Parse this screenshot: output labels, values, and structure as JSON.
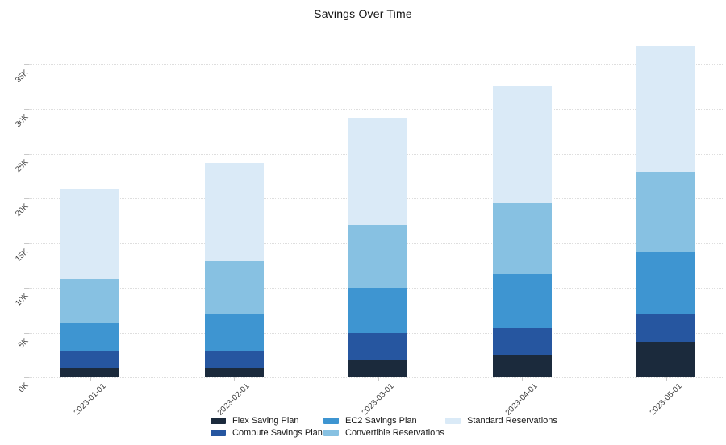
{
  "chart_data": {
    "type": "bar",
    "stacked": true,
    "title": "Savings Over Time",
    "categories": [
      "2023-01-01",
      "2023-02-01",
      "2023-03-01",
      "2023-04-01",
      "2023-05-01"
    ],
    "series": [
      {
        "name": "Flex Saving Plan",
        "color": "#1b2a3c",
        "values": [
          1000,
          1000,
          2000,
          2500,
          4000
        ]
      },
      {
        "name": "Compute Savings Plan",
        "color": "#2656a0",
        "values": [
          2000,
          2000,
          3000,
          3000,
          3000
        ]
      },
      {
        "name": "EC2 Savings Plan",
        "color": "#3e95d1",
        "values": [
          3000,
          4000,
          5000,
          6000,
          7000
        ]
      },
      {
        "name": "Convertible Reservations",
        "color": "#87c1e2",
        "values": [
          5000,
          6000,
          7000,
          8000,
          9000
        ]
      },
      {
        "name": "Standard Reservations",
        "color": "#daeaf7",
        "values": [
          10000,
          11000,
          12000,
          13000,
          14000
        ]
      }
    ],
    "totals": [
      21000,
      24000,
      29000,
      32500,
      37000
    ],
    "yaxis": {
      "tick_labels": [
        "0K",
        "5K",
        "10K",
        "15K",
        "20K",
        "25K",
        "30K",
        "35K"
      ],
      "tick_values": [
        0,
        5000,
        10000,
        15000,
        20000,
        25000,
        30000,
        35000
      ],
      "range": [
        0,
        37500
      ],
      "grid": true,
      "grid_style": "dotted"
    },
    "xaxis": {
      "tick_angle": 45
    },
    "legend_position": "bottom",
    "background_color": "#ffffff",
    "grid_color": "#dedede"
  }
}
